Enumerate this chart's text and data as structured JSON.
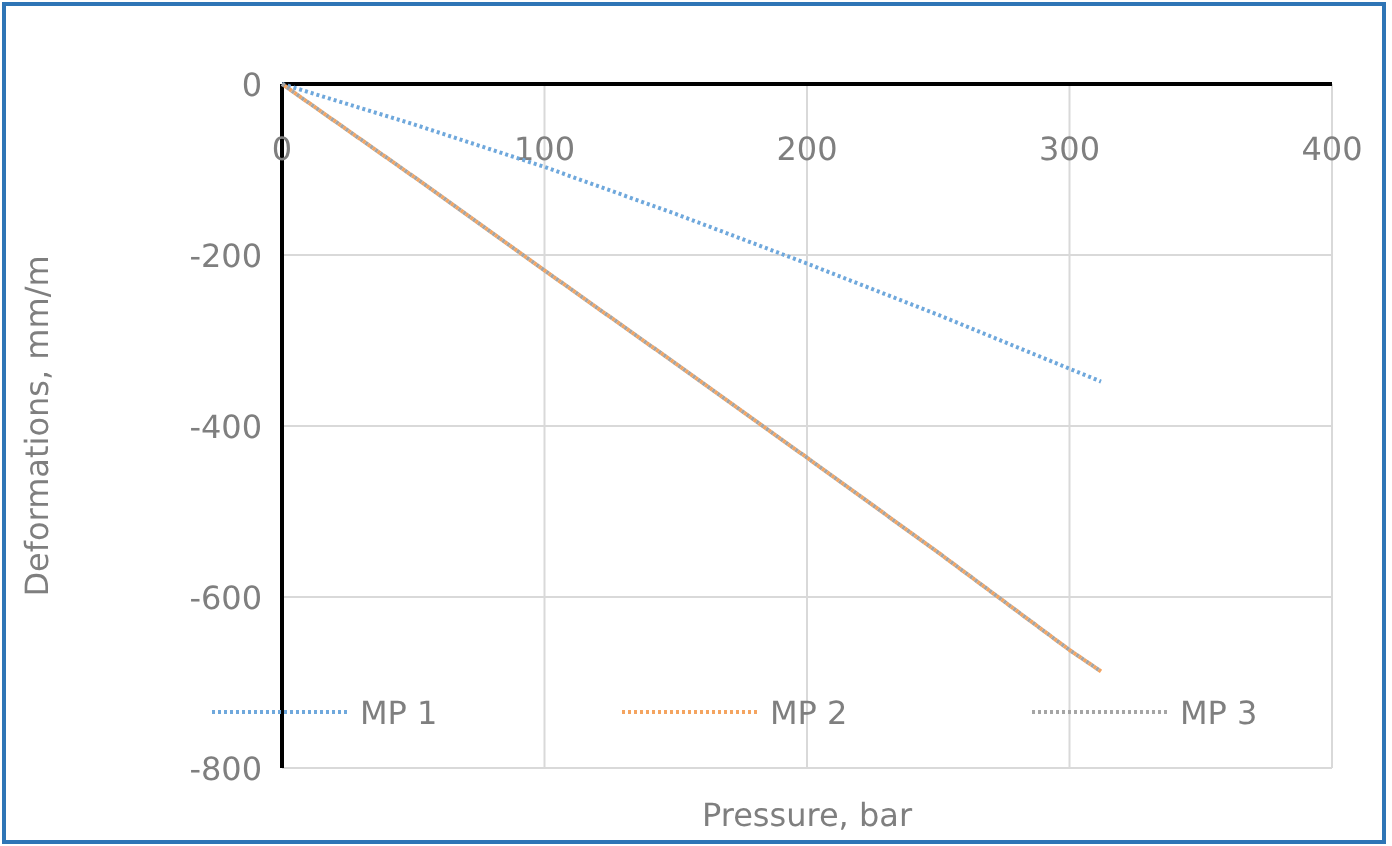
{
  "chart_data": {
    "type": "line",
    "xlabel": "Pressure, bar",
    "ylabel": "Deformations, mm/m",
    "xlim": [
      0,
      400
    ],
    "ylim": [
      -800,
      0
    ],
    "xticks": [
      0,
      100,
      200,
      300,
      400
    ],
    "yticks": [
      -800,
      -600,
      -400,
      -200,
      0
    ],
    "grid": true,
    "legend": "bottom",
    "line_style": "dotted",
    "marker": "none",
    "series": [
      {
        "name": "MP 1",
        "color": "#6fa8dc",
        "x": [
          0,
          50,
          100,
          150,
          200,
          250,
          300,
          312
        ],
        "values": [
          0,
          -47,
          -97,
          -152,
          -210,
          -270,
          -333,
          -348
        ]
      },
      {
        "name": "MP 2",
        "color": "#f4a460",
        "x": [
          0,
          50,
          100,
          150,
          200,
          250,
          300,
          312
        ],
        "values": [
          0,
          -108,
          -218,
          -327,
          -437,
          -548,
          -662,
          -687
        ]
      },
      {
        "name": "MP 3",
        "color": "#a5a5a5",
        "x": [
          0,
          50,
          100,
          150,
          200,
          250,
          300,
          312
        ],
        "values": [
          0,
          -108,
          -218,
          -327,
          -437,
          -548,
          -662,
          -687
        ]
      }
    ]
  }
}
